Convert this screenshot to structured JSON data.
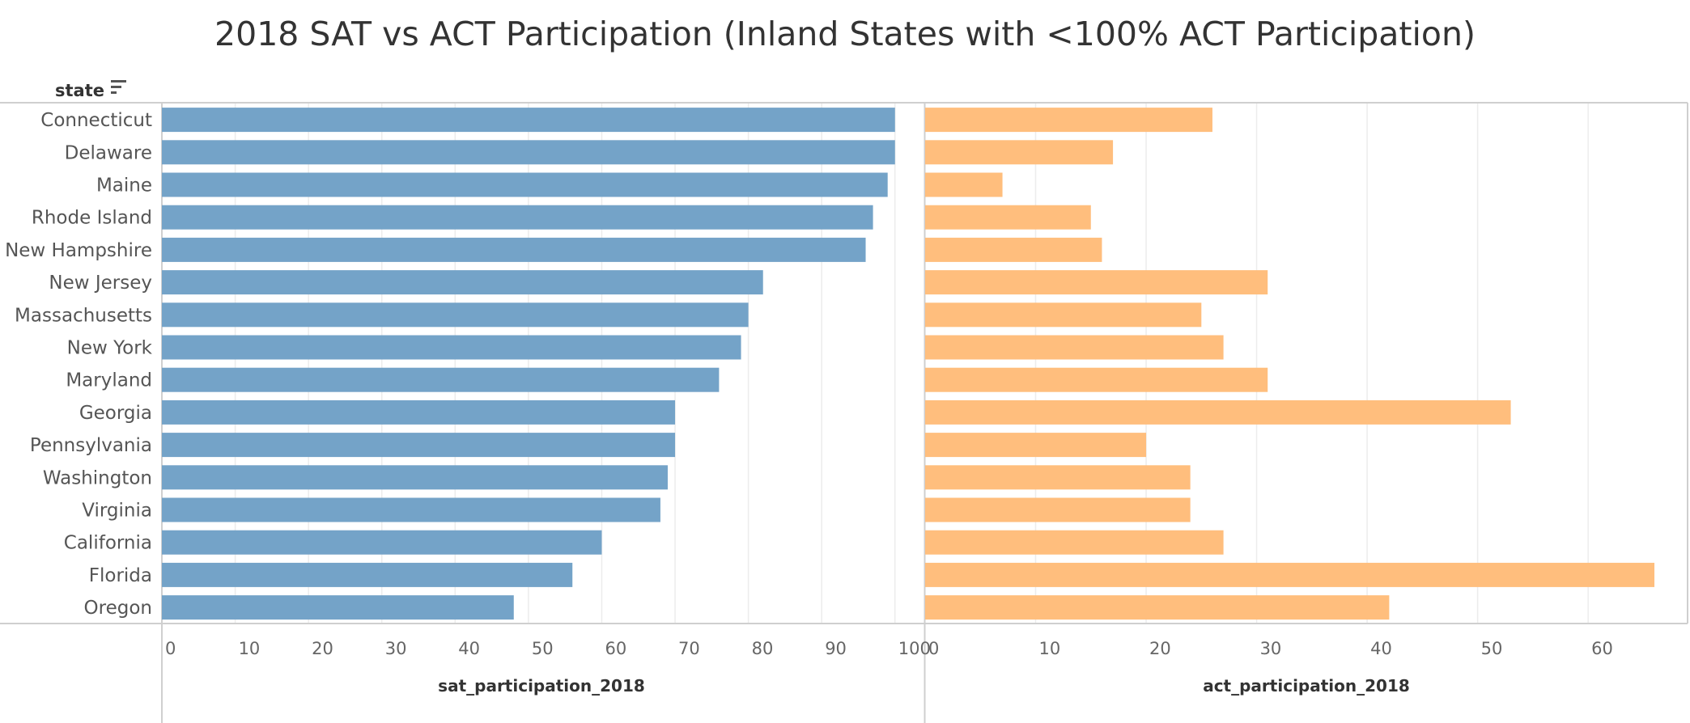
{
  "colors": {
    "sat_bar": "#74a3c8",
    "act_bar": "#ffbe7d",
    "grid": "#ececec",
    "axis": "#cfcfcf",
    "text": "#333333"
  },
  "header": {
    "field_label": "state",
    "sort_icon": "sort-descending-icon"
  },
  "chart_data": {
    "type": "bar",
    "orientation": "horizontal",
    "title": "2018 SAT vs ACT Participation (Inland States with <100% ACT Participation)",
    "categories": [
      "Connecticut",
      "Delaware",
      "Maine",
      "Rhode Island",
      "New Hampshire",
      "New Jersey",
      "Massachusetts",
      "New York",
      "Maryland",
      "Georgia",
      "Pennsylvania",
      "Washington",
      "Virginia",
      "California",
      "Florida",
      "Oregon"
    ],
    "series": [
      {
        "name": "sat_participation_2018",
        "values": [
          100,
          100,
          99,
          97,
          96,
          82,
          80,
          79,
          76,
          70,
          70,
          69,
          68,
          60,
          56,
          48
        ],
        "xlabel": "sat_participation_2018",
        "xlim": [
          0,
          104
        ],
        "ticks": [
          0,
          10,
          20,
          30,
          40,
          50,
          60,
          70,
          80,
          90,
          100
        ]
      },
      {
        "name": "act_participation_2018",
        "values": [
          26,
          17,
          7,
          15,
          16,
          31,
          25,
          27,
          31,
          53,
          20,
          24,
          24,
          27,
          66,
          42
        ],
        "xlabel": "act_participation_2018",
        "xlim": [
          0,
          69
        ],
        "ticks": [
          0,
          10,
          20,
          30,
          40,
          50,
          60
        ]
      }
    ],
    "grid": true,
    "legend": "none"
  }
}
